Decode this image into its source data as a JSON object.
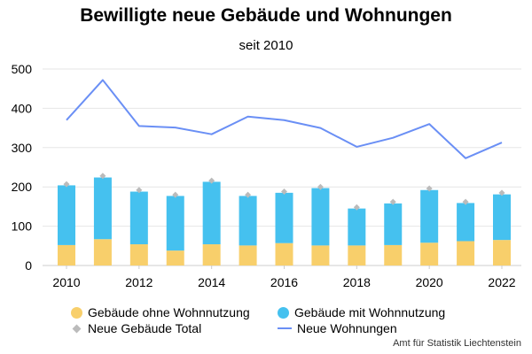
{
  "chart_data": {
    "type": "bar",
    "title": "Bewilligte neue Gebäude und Wohnungen",
    "subtitle": "seit 2010",
    "x": [
      2010,
      2011,
      2012,
      2013,
      2014,
      2015,
      2016,
      2017,
      2018,
      2019,
      2020,
      2021,
      2022
    ],
    "x_tick_labels": [
      "2010",
      "2012",
      "2014",
      "2016",
      "2018",
      "2020",
      "2022"
    ],
    "y_tick_labels": [
      "0",
      "100",
      "200",
      "300",
      "400",
      "500"
    ],
    "ylim": [
      0,
      500
    ],
    "grid": true,
    "stacked": true,
    "series": [
      {
        "name": "Gebäude ohne Wohnnutzung",
        "type": "bar",
        "color": "#f8cf6b",
        "values": [
          52,
          67,
          54,
          38,
          54,
          51,
          57,
          51,
          51,
          52,
          58,
          62,
          65
        ]
      },
      {
        "name": "Gebäude mit Wohnnutzung",
        "type": "bar",
        "color": "#45c1ef",
        "values": [
          152,
          157,
          134,
          139,
          159,
          126,
          128,
          146,
          94,
          106,
          134,
          97,
          116
        ]
      },
      {
        "name": "Neue Gebäude Total",
        "type": "marker",
        "color": "#bbbbbb",
        "values": [
          207,
          228,
          192,
          180,
          216,
          180,
          188,
          200,
          148,
          162,
          196,
          162,
          185
        ]
      },
      {
        "name": "Neue Wohnungen",
        "type": "line",
        "color": "#6a8ff5",
        "values": [
          370,
          472,
          355,
          351,
          334,
          379,
          370,
          350,
          302,
          325,
          360,
          273,
          313
        ]
      }
    ],
    "legend_position": "bottom",
    "source": "Amt für Statistik Liechtenstein"
  }
}
